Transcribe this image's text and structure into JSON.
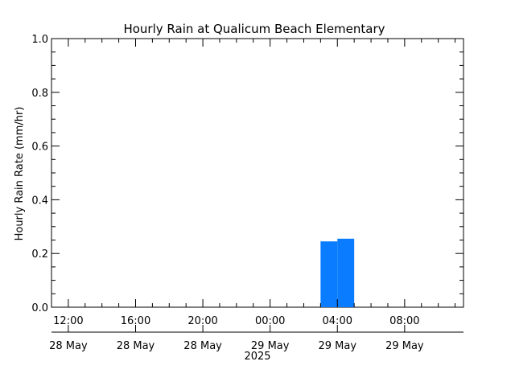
{
  "chart_data": {
    "type": "bar",
    "title": "Hourly Rain at Qualicum Beach Elementary",
    "ylabel": "Hourly Rain Rate (mm/hr)",
    "xlabel": "",
    "ylim": [
      0.0,
      1.0
    ],
    "y_ticks": [
      "0.0",
      "0.2",
      "0.4",
      "0.6",
      "0.8",
      "1.0"
    ],
    "x_range_hours": [
      -1.0,
      23.5
    ],
    "x_ticks": [
      {
        "hour": 0,
        "time": "12:00",
        "date": "28 May"
      },
      {
        "hour": 4,
        "time": "16:00",
        "date": "28 May"
      },
      {
        "hour": 8,
        "time": "20:00",
        "date": "28 May"
      },
      {
        "hour": 12,
        "time": "00:00",
        "date": "29 May"
      },
      {
        "hour": 16,
        "time": "04:00",
        "date": "29 May"
      },
      {
        "hour": 20,
        "time": "08:00",
        "date": "29 May"
      }
    ],
    "year_label": "2025",
    "bar_color": "#0a7cff",
    "bars": [
      {
        "start_hour": 15.0,
        "end_hour": 16.0,
        "value": 0.245
      },
      {
        "start_hour": 16.0,
        "end_hour": 17.0,
        "value": 0.255
      }
    ],
    "grid": false,
    "legend": "none"
  }
}
